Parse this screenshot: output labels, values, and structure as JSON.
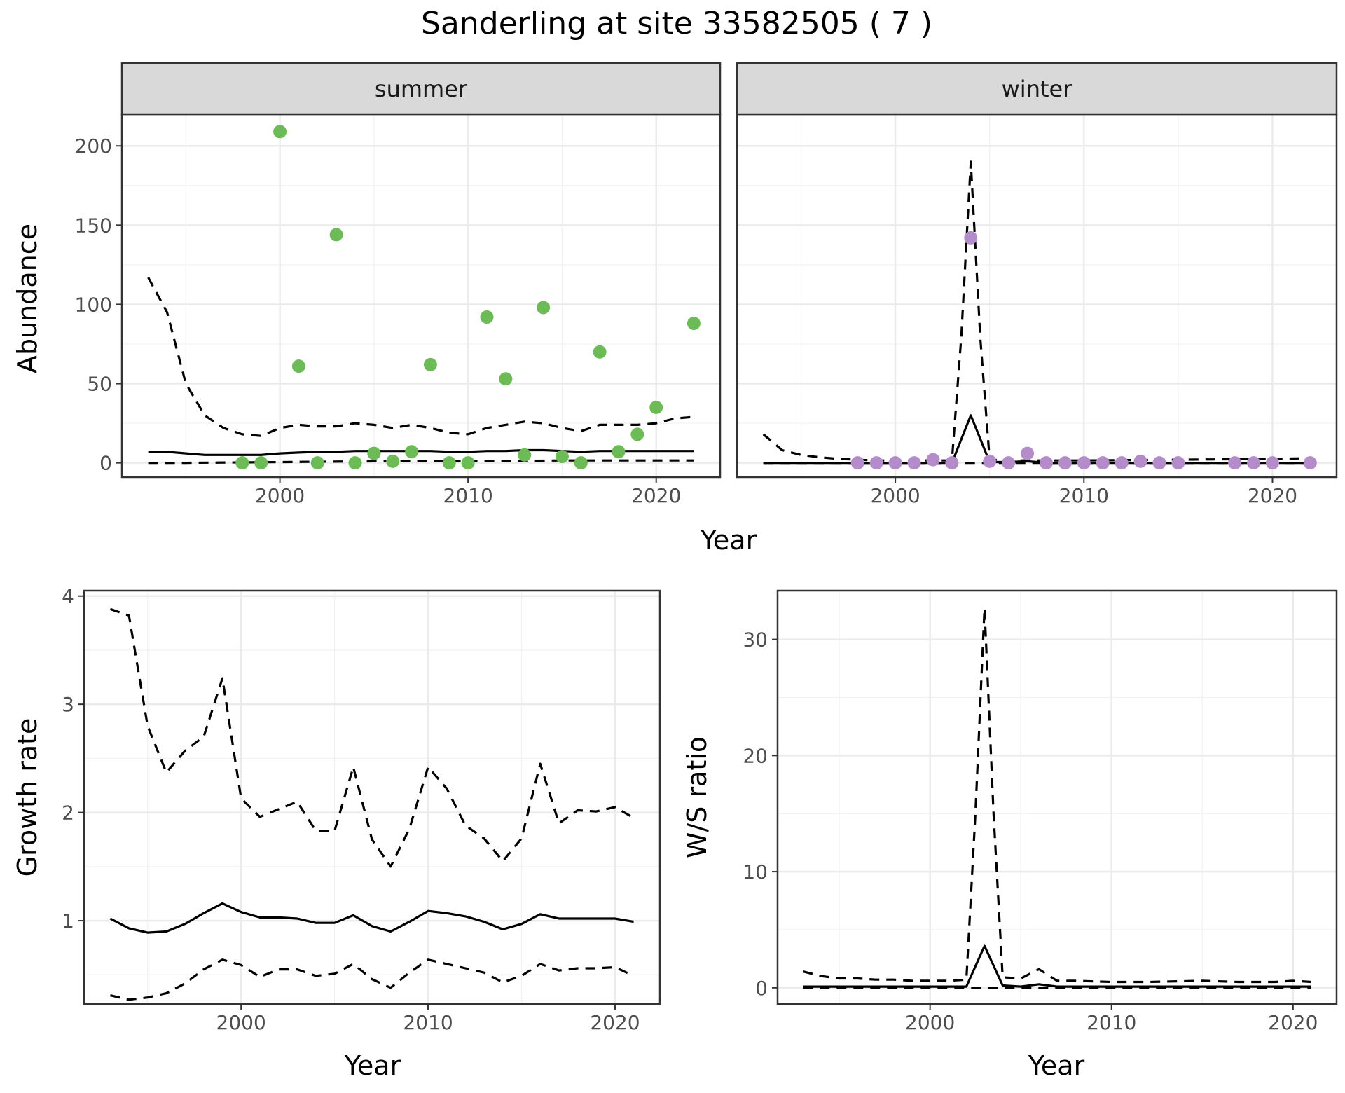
{
  "figure": {
    "title": "Sanderling at site 33582505 ( 7 )"
  },
  "colors": {
    "summer_points": "#6cbb57",
    "winter_points": "#b48cca",
    "strip_fill": "#d9d9d9"
  },
  "chart_data": [
    {
      "id": "abundance",
      "type": "line+scatter",
      "facets": [
        "summer",
        "winter"
      ],
      "xlabel": "Year",
      "ylabel": "Abundance",
      "xlim": [
        1991.6,
        2023.4
      ],
      "ylim": [
        -9,
        220
      ],
      "x_ticks": [
        2000,
        2010,
        2020
      ],
      "y_ticks": [
        0,
        50,
        100,
        150,
        200
      ],
      "panels": [
        {
          "strip": "summer",
          "point_color": "#6cbb57",
          "points": {
            "x": [
              1998,
              1999,
              2000,
              2001,
              2002,
              2003,
              2004,
              2005,
              2006,
              2007,
              2008,
              2009,
              2010,
              2011,
              2012,
              2013,
              2014,
              2015,
              2016,
              2017,
              2018,
              2019,
              2020,
              2022
            ],
            "y": [
              0,
              0,
              209,
              61,
              0,
              144,
              0,
              6,
              1,
              7,
              62,
              0,
              0,
              92,
              53,
              5,
              98,
              4,
              0,
              70,
              7,
              18,
              35,
              88
            ]
          },
          "lines": [
            {
              "name": "estimate",
              "style": "solid",
              "x": [
                1993,
                1994,
                1995,
                1996,
                1997,
                1998,
                1999,
                2000,
                2001,
                2002,
                2003,
                2004,
                2005,
                2006,
                2007,
                2008,
                2009,
                2010,
                2011,
                2012,
                2013,
                2014,
                2015,
                2016,
                2017,
                2018,
                2019,
                2020,
                2021,
                2022
              ],
              "y": [
                7,
                7,
                6,
                5,
                5,
                5,
                5,
                6,
                6.5,
                7,
                7,
                7.5,
                7.5,
                7.5,
                7.5,
                7.5,
                7,
                7,
                7.5,
                7.5,
                8,
                8,
                7.5,
                7,
                7.5,
                7.5,
                7.5,
                7.5,
                7.5,
                7.5
              ]
            },
            {
              "name": "upper",
              "style": "dashed",
              "x": [
                1993,
                1994,
                1995,
                1996,
                1997,
                1998,
                1999,
                2000,
                2001,
                2002,
                2003,
                2004,
                2005,
                2006,
                2007,
                2008,
                2009,
                2010,
                2011,
                2012,
                2013,
                2014,
                2015,
                2016,
                2017,
                2018,
                2019,
                2020,
                2021,
                2022
              ],
              "y": [
                117,
                95,
                50,
                30,
                22,
                18,
                17,
                22,
                24,
                23,
                23,
                25,
                24,
                22,
                24,
                22,
                19,
                18,
                22,
                24,
                26,
                25,
                22,
                20,
                24,
                24,
                24,
                25,
                28,
                29
              ]
            },
            {
              "name": "lower",
              "style": "dashed",
              "x": [
                1993,
                1995,
                2000,
                2005,
                2010,
                2015,
                2020,
                2022
              ],
              "y": [
                0,
                0,
                0.5,
                1,
                1,
                1.5,
                1.5,
                1.5
              ]
            }
          ]
        },
        {
          "strip": "winter",
          "point_color": "#b48cca",
          "points": {
            "x": [
              1998,
              1999,
              2000,
              2001,
              2002,
              2003,
              2004,
              2005,
              2006,
              2007,
              2008,
              2009,
              2010,
              2011,
              2012,
              2013,
              2014,
              2015,
              2018,
              2019,
              2020,
              2022
            ],
            "y": [
              0,
              0,
              0,
              0,
              2,
              0,
              142,
              1,
              0,
              6,
              0,
              0,
              0,
              0,
              0,
              1,
              0,
              0,
              0,
              0,
              0,
              0
            ]
          },
          "lines": [
            {
              "name": "estimate",
              "style": "solid",
              "x": [
                1993,
                1996,
                2000,
                2003,
                2004,
                2005,
                2006,
                2007,
                2008,
                2010,
                2015,
                2020,
                2022
              ],
              "y": [
                0,
                0,
                0,
                0,
                30,
                0.5,
                0.5,
                1,
                0,
                0,
                0,
                0,
                0
              ]
            },
            {
              "name": "upper",
              "style": "dashed",
              "x": [
                1993,
                1994,
                1995,
                1996,
                1997,
                1998,
                1999,
                2000,
                2001,
                2002,
                2003,
                2003.5,
                2004,
                2004.5,
                2005,
                2006,
                2007,
                2008,
                2010,
                2015,
                2020,
                2022
              ],
              "y": [
                18,
                8,
                5,
                3.5,
                2.5,
                2,
                1.5,
                1.5,
                1.5,
                1.5,
                1.5,
                80,
                190,
                80,
                2,
                1.5,
                1.5,
                1.5,
                1.5,
                2,
                2.5,
                3
              ]
            },
            {
              "name": "lower",
              "style": "dashed",
              "x": [
                1993,
                2000,
                2005,
                2010,
                2015,
                2020,
                2022
              ],
              "y": [
                0,
                0,
                0,
                0,
                0,
                0,
                0
              ]
            }
          ]
        }
      ]
    },
    {
      "id": "growth",
      "type": "line",
      "xlabel": "Year",
      "ylabel": "Growth rate",
      "xlim": [
        1991.6,
        2022.4
      ],
      "ylim": [
        0.23,
        4.05
      ],
      "x_ticks": [
        2000,
        2010,
        2020
      ],
      "y_ticks": [
        1,
        2,
        3,
        4
      ],
      "lines": [
        {
          "name": "estimate",
          "style": "solid",
          "x": [
            1993,
            1994,
            1995,
            1996,
            1997,
            1998,
            1999,
            2000,
            2001,
            2002,
            2003,
            2004,
            2005,
            2006,
            2007,
            2008,
            2009,
            2010,
            2011,
            2012,
            2013,
            2014,
            2015,
            2016,
            2017,
            2018,
            2019,
            2020,
            2021
          ],
          "y": [
            1.02,
            0.93,
            0.89,
            0.9,
            0.97,
            1.07,
            1.16,
            1.08,
            1.03,
            1.03,
            1.02,
            0.98,
            0.98,
            1.05,
            0.95,
            0.9,
            0.99,
            1.09,
            1.07,
            1.04,
            0.99,
            0.92,
            0.97,
            1.06,
            1.02,
            1.02,
            1.02,
            1.02,
            0.99
          ]
        },
        {
          "name": "upper",
          "style": "dashed",
          "x": [
            1993,
            1994,
            1995,
            1996,
            1997,
            1998,
            1999,
            2000,
            2001,
            2002,
            2003,
            2004,
            2005,
            2006,
            2007,
            2008,
            2009,
            2010,
            2011,
            2012,
            2013,
            2014,
            2015,
            2016,
            2017,
            2018,
            2019,
            2020,
            2021
          ],
          "y": [
            3.88,
            3.82,
            2.8,
            2.37,
            2.57,
            2.7,
            3.24,
            2.13,
            1.96,
            2.03,
            2.1,
            1.83,
            1.83,
            2.42,
            1.75,
            1.5,
            1.85,
            2.42,
            2.22,
            1.88,
            1.76,
            1.55,
            1.76,
            2.45,
            1.9,
            2.02,
            2.01,
            2.05,
            1.95
          ]
        },
        {
          "name": "lower",
          "style": "dashed",
          "x": [
            1993,
            1994,
            1995,
            1996,
            1997,
            1998,
            1999,
            2000,
            2001,
            2002,
            2003,
            2004,
            2005,
            2006,
            2007,
            2008,
            2009,
            2010,
            2011,
            2012,
            2013,
            2014,
            2015,
            2016,
            2017,
            2018,
            2019,
            2020,
            2021
          ],
          "y": [
            0.31,
            0.27,
            0.29,
            0.33,
            0.42,
            0.55,
            0.64,
            0.59,
            0.48,
            0.55,
            0.55,
            0.49,
            0.51,
            0.6,
            0.46,
            0.38,
            0.52,
            0.64,
            0.6,
            0.56,
            0.52,
            0.43,
            0.49,
            0.6,
            0.54,
            0.56,
            0.56,
            0.57,
            0.49
          ]
        }
      ]
    },
    {
      "id": "ratio",
      "type": "line",
      "xlabel": "Year",
      "ylabel": "W/S ratio",
      "xlim": [
        1991.6,
        2022.4
      ],
      "ylim": [
        -1.4,
        34.2
      ],
      "x_ticks": [
        2000,
        2010,
        2020
      ],
      "y_ticks": [
        0,
        10,
        20,
        30
      ],
      "lines": [
        {
          "name": "estimate",
          "style": "solid",
          "x": [
            1993,
            1996,
            2000,
            2002,
            2003,
            2004,
            2005,
            2006,
            2007,
            2010,
            2015,
            2020,
            2021
          ],
          "y": [
            0.1,
            0.1,
            0.1,
            0.1,
            3.6,
            0.2,
            0.1,
            0.3,
            0.1,
            0.1,
            0.1,
            0.1,
            0.1
          ]
        },
        {
          "name": "upper",
          "style": "dashed",
          "x": [
            1993,
            1994,
            1995,
            1996,
            1997,
            1998,
            1999,
            2000,
            2001,
            2002,
            2002.5,
            2003,
            2003.5,
            2004,
            2005,
            2006,
            2007,
            2008,
            2010,
            2012,
            2015,
            2017,
            2019,
            2020,
            2021
          ],
          "y": [
            1.4,
            1.0,
            0.8,
            0.8,
            0.7,
            0.7,
            0.6,
            0.6,
            0.6,
            0.7,
            15,
            32.7,
            15,
            0.9,
            0.8,
            1.6,
            0.6,
            0.6,
            0.5,
            0.5,
            0.6,
            0.5,
            0.5,
            0.6,
            0.5
          ]
        },
        {
          "name": "lower",
          "style": "dashed",
          "x": [
            1993,
            2000,
            2005,
            2010,
            2015,
            2020,
            2021
          ],
          "y": [
            0,
            0,
            0,
            0,
            0,
            0,
            0
          ]
        }
      ]
    }
  ]
}
